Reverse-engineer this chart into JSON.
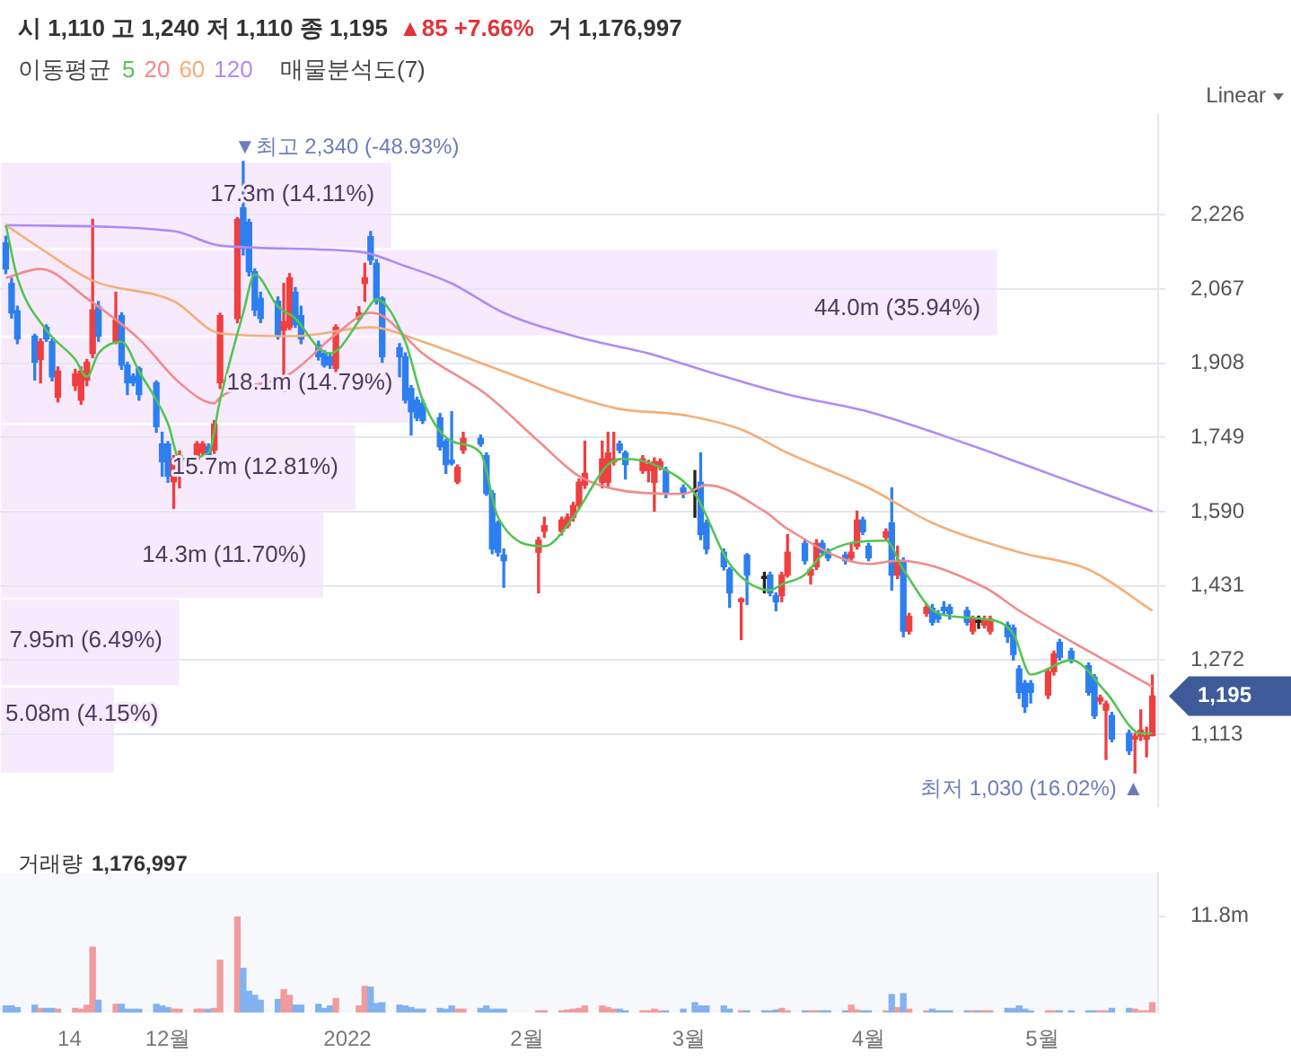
{
  "chart_data": [
    {
      "type": "candlestick",
      "title": "시 1,110 고 1,240 저 1,110 종 1,195",
      "subtitle": "▲85 +7.66%",
      "legend_title": "이동평균",
      "legend": "top left",
      "grid": "y",
      "marker": "none",
      "tick_labels": "y",
      "annotations": [
        "거 1,176,997",
        "Linear",
        {
          "text": "▼최고 2,340 (-48.93%)",
          "x": "2021-12-14",
          "y": 2340
        },
        {
          "text": "최저 1,030 (16.02%) ▲",
          "x": "2022-05-17",
          "y": 1030
        },
        {
          "text": "1,195",
          "x": "2022-05-20",
          "y": 1195
        }
      ],
      "xlim": [
        "2021-11-02",
        "2022-05-21"
      ],
      "ylim": [
        960,
        2440
      ],
      "yticks": [
        {
          "value": 1113,
          "label": "1,113"
        },
        {
          "value": 1272,
          "label": "1,272"
        },
        {
          "value": 1431,
          "label": "1,431"
        },
        {
          "value": 1590,
          "label": "1,590"
        },
        {
          "value": 1749,
          "label": "1,749"
        },
        {
          "value": 1908,
          "label": "1,908"
        },
        {
          "value": 2067,
          "label": "2,067"
        },
        {
          "value": 2226,
          "label": "2,226"
        }
      ],
      "x": [
        "2021-11-03",
        "2021-11-04",
        "2021-11-05",
        "2021-11-08",
        "2021-11-09",
        "2021-11-10",
        "2021-11-11",
        "2021-11-12",
        "2021-11-15",
        "2021-11-16",
        "2021-11-17",
        "2021-11-18",
        "2021-11-19",
        "2021-11-22",
        "2021-11-23",
        "2021-11-24",
        "2021-11-25",
        "2021-11-26",
        "2021-11-29",
        "2021-11-30",
        "2021-12-01",
        "2021-12-02",
        "2021-12-03",
        "2021-12-06",
        "2021-12-07",
        "2021-12-08",
        "2021-12-09",
        "2021-12-10",
        "2021-12-13",
        "2021-12-14",
        "2021-12-15",
        "2021-12-16",
        "2021-12-17",
        "2021-12-20",
        "2021-12-21",
        "2021-12-22",
        "2021-12-23",
        "2021-12-24",
        "2021-12-27",
        "2021-12-28",
        "2021-12-29",
        "2021-12-30",
        "2022-01-03",
        "2022-01-04",
        "2022-01-05",
        "2022-01-06",
        "2022-01-07",
        "2022-01-10",
        "2022-01-11",
        "2022-01-12",
        "2022-01-13",
        "2022-01-14",
        "2022-01-17",
        "2022-01-18",
        "2022-01-19",
        "2022-01-20",
        "2022-01-21",
        "2022-01-24",
        "2022-01-25",
        "2022-01-26",
        "2022-01-27",
        "2022-01-28",
        "2022-02-03",
        "2022-02-04",
        "2022-02-07",
        "2022-02-08",
        "2022-02-09",
        "2022-02-10",
        "2022-02-11",
        "2022-02-14",
        "2022-02-15",
        "2022-02-16",
        "2022-02-17",
        "2022-02-18",
        "2022-02-21",
        "2022-02-22",
        "2022-02-23",
        "2022-02-24",
        "2022-02-25",
        "2022-02-28",
        "2022-03-02",
        "2022-03-03",
        "2022-03-04",
        "2022-03-07",
        "2022-03-08",
        "2022-03-10",
        "2022-03-11",
        "2022-03-14",
        "2022-03-15",
        "2022-03-16",
        "2022-03-17",
        "2022-03-18",
        "2022-03-21",
        "2022-03-22",
        "2022-03-23",
        "2022-03-24",
        "2022-03-25",
        "2022-03-28",
        "2022-03-29",
        "2022-03-30",
        "2022-03-31",
        "2022-04-01",
        "2022-04-04",
        "2022-04-05",
        "2022-04-06",
        "2022-04-07",
        "2022-04-08",
        "2022-04-11",
        "2022-04-12",
        "2022-04-13",
        "2022-04-14",
        "2022-04-15",
        "2022-04-18",
        "2022-04-19",
        "2022-04-20",
        "2022-04-21",
        "2022-04-22",
        "2022-04-25",
        "2022-04-26",
        "2022-04-27",
        "2022-04-28",
        "2022-04-29",
        "2022-05-02",
        "2022-05-03",
        "2022-05-04",
        "2022-05-06",
        "2022-05-09",
        "2022-05-10",
        "2022-05-11",
        "2022-05-12",
        "2022-05-13",
        "2022-05-16",
        "2022-05-17",
        "2022-05-18",
        "2022-05-19",
        "2022-05-20"
      ],
      "ohlc": [
        [
          2166,
          2180,
          2100,
          2110
        ],
        [
          2079,
          2090,
          2005,
          2016
        ],
        [
          2020,
          2030,
          1950,
          1960
        ],
        [
          1966,
          1970,
          1872,
          1910
        ],
        [
          1916,
          1960,
          1866,
          1954
        ],
        [
          1985,
          1990,
          1955,
          1960
        ],
        [
          1954,
          1960,
          1870,
          1879
        ],
        [
          1835,
          1900,
          1825,
          1891
        ],
        [
          1860,
          1895,
          1850,
          1885
        ],
        [
          1829,
          1900,
          1820,
          1891
        ],
        [
          1872,
          1916,
          1860,
          1910
        ],
        [
          1929,
          2216,
          1920,
          2022
        ],
        [
          2029,
          2040,
          1955,
          1966
        ],
        [
          1954,
          2060,
          1950,
          2000
        ],
        [
          2010,
          2016,
          1895,
          1904
        ],
        [
          1904,
          1910,
          1841,
          1866
        ],
        [
          1880,
          1885,
          1860,
          1866
        ],
        [
          1897,
          1900,
          1829,
          1841
        ],
        [
          1866,
          1870,
          1760,
          1772
        ],
        [
          1735,
          1760,
          1666,
          1697
        ],
        [
          1735,
          1740,
          1653,
          1666
        ],
        [
          1654,
          1710,
          1597,
          1703
        ],
        [
          1672,
          1720,
          1641,
          1710
        ],
        [
          1703,
          1740,
          1700,
          1735
        ],
        [
          1716,
          1740,
          1710,
          1735
        ],
        [
          1729,
          1735,
          1705,
          1710
        ],
        [
          1722,
          1785,
          1715,
          1778
        ],
        [
          1866,
          2015,
          1854,
          2010
        ],
        [
          2004,
          2220,
          1995,
          2216
        ],
        [
          2241,
          2340,
          2140,
          2154
        ],
        [
          2210,
          2216,
          2095,
          2104
        ],
        [
          2104,
          2110,
          2010,
          2022
        ],
        [
          2047,
          2060,
          1995,
          2004
        ],
        [
          2041,
          2050,
          1960,
          1966
        ],
        [
          1979,
          2079,
          1847,
          1997
        ],
        [
          1985,
          2100,
          1980,
          2091
        ],
        [
          2060,
          2070,
          1985,
          1991
        ],
        [
          2010,
          2030,
          1950,
          1960
        ],
        [
          1947,
          1955,
          1915,
          1922
        ],
        [
          1929,
          1935,
          1900,
          1904
        ],
        [
          1922,
          1930,
          1897,
          1904
        ],
        [
          1897,
          1990,
          1890,
          1985
        ],
        [
          2004,
          2029,
          2000,
          2016
        ],
        [
          2079,
          2122,
          2041,
          2091
        ],
        [
          2179,
          2190,
          2120,
          2129
        ],
        [
          2122,
          2130,
          2035,
          2041
        ],
        [
          2047,
          2050,
          1910,
          1922
        ],
        [
          1941,
          1950,
          1879,
          1922
        ],
        [
          1922,
          1930,
          1823,
          1829
        ],
        [
          1854,
          1860,
          1754,
          1804
        ],
        [
          1829,
          1835,
          1785,
          1791
        ],
        [
          1822,
          1830,
          1779,
          1785
        ],
        [
          1791,
          1800,
          1722,
          1729
        ],
        [
          1741,
          1745,
          1672,
          1691
        ],
        [
          1700,
          1804,
          1690,
          1694
        ],
        [
          1654,
          1690,
          1650,
          1685
        ],
        [
          1722,
          1760,
          1715,
          1747
        ],
        [
          1747,
          1754,
          1730,
          1735
        ],
        [
          1710,
          1716,
          1625,
          1629
        ],
        [
          1629,
          1635,
          1500,
          1510
        ],
        [
          1566,
          1570,
          1495,
          1503
        ],
        [
          1497,
          1510,
          1428,
          1485
        ],
        [
          1503,
          1535,
          1416,
          1529
        ],
        [
          1548,
          1578,
          1535,
          1560
        ],
        [
          1548,
          1578,
          1540,
          1572
        ],
        [
          1560,
          1585,
          1555,
          1578
        ],
        [
          1578,
          1610,
          1570,
          1603
        ],
        [
          1603,
          1660,
          1597,
          1653
        ],
        [
          1647,
          1741,
          1640,
          1672
        ],
        [
          1653,
          1741,
          1641,
          1703
        ],
        [
          1653,
          1760,
          1641,
          1716
        ],
        [
          1697,
          1760,
          1690,
          1703
        ],
        [
          1735,
          1741,
          1716,
          1722
        ],
        [
          1716,
          1720,
          1660,
          1691
        ],
        [
          1678,
          1710,
          1672,
          1703
        ],
        [
          1678,
          1700,
          1654,
          1691
        ],
        [
          1653,
          1705,
          1591,
          1697
        ],
        [
          1685,
          1703,
          1680,
          1697
        ],
        [
          1678,
          1685,
          1620,
          1629
        ],
        [
          1641,
          1647,
          1620,
          1629
        ],
        [
          1634,
          1678,
          1578,
          1634
        ],
        [
          1653,
          1716,
          1530,
          1541
        ],
        [
          1566,
          1572,
          1500,
          1510
        ],
        [
          1503,
          1510,
          1465,
          1472
        ],
        [
          1466,
          1470,
          1385,
          1416
        ],
        [
          1397,
          1405,
          1316,
          1403
        ],
        [
          1497,
          1500,
          1391,
          1454
        ],
        [
          1447,
          1460,
          1416,
          1447
        ],
        [
          1454,
          1460,
          1410,
          1416
        ],
        [
          1410,
          1416,
          1378,
          1397
        ],
        [
          1410,
          1460,
          1397,
          1454
        ],
        [
          1454,
          1541,
          1450,
          1503
        ],
        [
          1522,
          1530,
          1478,
          1485
        ],
        [
          1454,
          1470,
          1435,
          1466
        ],
        [
          1472,
          1530,
          1466,
          1522
        ],
        [
          1522,
          1528,
          1497,
          1503
        ],
        [
          1503,
          1510,
          1485,
          1491
        ],
        [
          1497,
          1503,
          1478,
          1485
        ],
        [
          1491,
          1522,
          1485,
          1503
        ],
        [
          1516,
          1591,
          1510,
          1572
        ],
        [
          1572,
          1578,
          1541,
          1547
        ],
        [
          1516,
          1522,
          1485,
          1491
        ],
        [
          1535,
          1553,
          1528,
          1547
        ],
        [
          1566,
          1641,
          1422,
          1454
        ],
        [
          1454,
          1516,
          1447,
          1485
        ],
        [
          1485,
          1491,
          1322,
          1334
        ],
        [
          1334,
          1372,
          1328,
          1366
        ],
        [
          1372,
          1391,
          1366,
          1385
        ],
        [
          1383,
          1391,
          1347,
          1353
        ],
        [
          1372,
          1378,
          1353,
          1360
        ],
        [
          1385,
          1397,
          1372,
          1378
        ],
        [
          1385,
          1391,
          1360,
          1372
        ],
        [
          1378,
          1385,
          1347,
          1353
        ],
        [
          1334,
          1366,
          1328,
          1360
        ],
        [
          1353,
          1366,
          1340,
          1353
        ],
        [
          1347,
          1366,
          1341,
          1360
        ],
        [
          1334,
          1366,
          1328,
          1360
        ],
        [
          1347,
          1353,
          1310,
          1322
        ],
        [
          1341,
          1347,
          1272,
          1284
        ],
        [
          1253,
          1260,
          1190,
          1203
        ],
        [
          1222,
          1228,
          1160,
          1172
        ],
        [
          1222,
          1228,
          1180,
          1203
        ],
        [
          1197,
          1253,
          1190,
          1247
        ],
        [
          1247,
          1291,
          1240,
          1285
        ],
        [
          1310,
          1316,
          1272,
          1278
        ],
        [
          1291,
          1297,
          1266,
          1272
        ],
        [
          1260,
          1266,
          1197,
          1203
        ],
        [
          1235,
          1241,
          1147,
          1153
        ],
        [
          1184,
          1197,
          1178,
          1191
        ],
        [
          1165,
          1184,
          1059,
          1178
        ],
        [
          1153,
          1160,
          1097,
          1103
        ],
        [
          1115,
          1122,
          1070,
          1078
        ],
        [
          1103,
          1115,
          1030,
          1109
        ],
        [
          1109,
          1165,
          1100,
          1122
        ],
        [
          1103,
          1128,
          1065,
          1110
        ],
        [
          1110,
          1240,
          1110,
          1195
        ]
      ],
      "colors": [
        "#2d7ff0",
        "#2d7ff0",
        "#2d7ff0",
        "#2d7ff0",
        "#ef3f3f",
        "#2d7ff0",
        "#2d7ff0",
        "#ef3f3f",
        "#ef3f3f",
        "#ef3f3f",
        "#ef3f3f",
        "#ef3f3f",
        "#2d7ff0",
        "#ef3f3f",
        "#2d7ff0",
        "#2d7ff0",
        "#2d7ff0",
        "#2d7ff0",
        "#2d7ff0",
        "#2d7ff0",
        "#2d7ff0",
        "#ef3f3f",
        "#ef3f3f",
        "#ef3f3f",
        "#ef3f3f",
        "#2d7ff0",
        "#ef3f3f",
        "#ef3f3f",
        "#ef3f3f",
        "#2d7ff0",
        "#2d7ff0",
        "#2d7ff0",
        "#2d7ff0",
        "#2d7ff0",
        "#ef3f3f",
        "#ef3f3f",
        "#2d7ff0",
        "#2d7ff0",
        "#2d7ff0",
        "#2d7ff0",
        "#2d7ff0",
        "#ef3f3f",
        "#ef3f3f",
        "#ef3f3f",
        "#2d7ff0",
        "#2d7ff0",
        "#2d7ff0",
        "#2d7ff0",
        "#2d7ff0",
        "#2d7ff0",
        "#2d7ff0",
        "#2d7ff0",
        "#2d7ff0",
        "#2d7ff0",
        "#2d7ff0",
        "#ef3f3f",
        "#ef3f3f",
        "#2d7ff0",
        "#2d7ff0",
        "#2d7ff0",
        "#2d7ff0",
        "#2d7ff0",
        "#ef3f3f",
        "#ef3f3f",
        "#ef3f3f",
        "#ef3f3f",
        "#ef3f3f",
        "#ef3f3f",
        "#ef3f3f",
        "#ef3f3f",
        "#ef3f3f",
        "#ef3f3f",
        "#2d7ff0",
        "#2d7ff0",
        "#ef3f3f",
        "#ef3f3f",
        "#ef3f3f",
        "#ef3f3f",
        "#2d7ff0",
        "#2d7ff0",
        "#222222",
        "#2d7ff0",
        "#2d7ff0",
        "#2d7ff0",
        "#2d7ff0",
        "#ef3f3f",
        "#2d7ff0",
        "#222222",
        "#2d7ff0",
        "#2d7ff0",
        "#ef3f3f",
        "#ef3f3f",
        "#2d7ff0",
        "#ef3f3f",
        "#ef3f3f",
        "#2d7ff0",
        "#2d7ff0",
        "#2d7ff0",
        "#ef3f3f",
        "#ef3f3f",
        "#2d7ff0",
        "#2d7ff0",
        "#ef3f3f",
        "#2d7ff0",
        "#ef3f3f",
        "#2d7ff0",
        "#ef3f3f",
        "#ef3f3f",
        "#2d7ff0",
        "#2d7ff0",
        "#2d7ff0",
        "#2d7ff0",
        "#2d7ff0",
        "#ef3f3f",
        "#222222",
        "#ef3f3f",
        "#ef3f3f",
        "#2d7ff0",
        "#2d7ff0",
        "#2d7ff0",
        "#2d7ff0",
        "#2d7ff0",
        "#ef3f3f",
        "#ef3f3f",
        "#2d7ff0",
        "#2d7ff0",
        "#2d7ff0",
        "#2d7ff0",
        "#ef3f3f",
        "#ef3f3f",
        "#2d7ff0",
        "#2d7ff0",
        "#ef3f3f",
        "#ef3f3f",
        "#ef3f3f",
        "#ef3f3f"
      ],
      "series": [
        {
          "name": "5",
          "type": "line",
          "color": "#52c452",
          "x": [
            "2021-11-03",
            "2021-11-05",
            "2021-11-10",
            "2021-11-15",
            "2021-11-17",
            "2021-11-19",
            "2021-11-23",
            "2021-11-26",
            "2021-12-01",
            "2021-12-03",
            "2021-12-08",
            "2021-12-10",
            "2021-12-14",
            "2021-12-16",
            "2021-12-20",
            "2021-12-23",
            "2021-12-27",
            "2021-12-29",
            "2022-01-04",
            "2022-01-06",
            "2022-01-11",
            "2022-01-14",
            "2022-01-19",
            "2022-01-24",
            "2022-01-27",
            "2022-02-04",
            "2022-02-09",
            "2022-02-15",
            "2022-02-18",
            "2022-02-24",
            "2022-03-02",
            "2022-03-08",
            "2022-03-15",
            "2022-03-17",
            "2022-03-21",
            "2022-03-24",
            "2022-04-04",
            "2022-04-07",
            "2022-04-13",
            "2022-04-21",
            "2022-04-26",
            "2022-04-29",
            "2022-05-06",
            "2022-05-12",
            "2022-05-18",
            "2022-05-20"
          ],
          "values": [
            2204,
            2091,
            1979,
            1916,
            1879,
            1929,
            1954,
            1891,
            1779,
            1703,
            1716,
            1829,
            2016,
            2098,
            2029,
            2004,
            1941,
            1929,
            2016,
            2045,
            1954,
            1829,
            1741,
            1716,
            1578,
            1516,
            1578,
            1691,
            1703,
            1685,
            1628,
            1478,
            1422,
            1434,
            1455,
            1497,
            1528,
            1466,
            1372,
            1360,
            1328,
            1241,
            1272,
            1203,
            1115,
            1115
          ]
        },
        {
          "name": "20",
          "type": "line",
          "color": "#f28b8b",
          "x": [
            "2021-11-03",
            "2021-11-09",
            "2021-11-17",
            "2021-11-26",
            "2021-12-03",
            "2021-12-09",
            "2021-12-10",
            "2021-12-22",
            "2021-12-30",
            "2022-01-05",
            "2022-01-07",
            "2022-01-14",
            "2022-01-25",
            "2022-02-03",
            "2022-02-10",
            "2022-02-18",
            "2022-02-28",
            "2022-03-04",
            "2022-03-14",
            "2022-03-18",
            "2022-04-01",
            "2022-04-06",
            "2022-04-21",
            "2022-04-27",
            "2022-05-09",
            "2022-05-20"
          ],
          "values": [
            2091,
            2110,
            2047,
            1960,
            1866,
            1822,
            1835,
            1885,
            1970,
            2016,
            2010,
            1929,
            1841,
            1741,
            1666,
            1634,
            1628,
            1647,
            1591,
            1553,
            1478,
            1485,
            1428,
            1378,
            1291,
            1215
          ]
        },
        {
          "name": "60",
          "type": "line",
          "color": "#f5ae78",
          "x": [
            "2021-11-03",
            "2021-11-09",
            "2021-11-18",
            "2021-12-02",
            "2021-12-10",
            "2021-12-23",
            "2022-01-05",
            "2022-01-14",
            "2022-01-25",
            "2022-02-08",
            "2022-02-17",
            "2022-02-28",
            "2022-03-10",
            "2022-03-18",
            "2022-04-01",
            "2022-04-12",
            "2022-04-27",
            "2022-05-09",
            "2022-05-20"
          ],
          "values": [
            2204,
            2154,
            2085,
            2041,
            1972,
            1966,
            1985,
            1954,
            1904,
            1841,
            1810,
            1797,
            1766,
            1716,
            1641,
            1566,
            1503,
            1466,
            1378
          ]
        },
        {
          "name": "120",
          "type": "line",
          "color": "#b08af5",
          "x": [
            "2021-11-03",
            "2021-12-02",
            "2021-12-10",
            "2022-01-03",
            "2022-01-11",
            "2022-01-19",
            "2022-01-28",
            "2022-02-11",
            "2022-02-22",
            "2022-03-04",
            "2022-03-18",
            "2022-04-01",
            "2022-04-18",
            "2022-05-02",
            "2022-05-20"
          ],
          "values": [
            2204,
            2191,
            2160,
            2147,
            2116,
            2079,
            2016,
            1960,
            1929,
            1891,
            1841,
            1804,
            1735,
            1672,
            1591
          ]
        }
      ]
    },
    {
      "type": "bar",
      "orientation": "horizontal",
      "title": "매물분석도(7)",
      "color": "#f7eafd",
      "categories": [
        null,
        null,
        null,
        null,
        null,
        null,
        null
      ],
      "values": [
        17300000,
        44000000,
        18100000,
        15700000,
        14300000,
        7950000,
        5080000
      ],
      "value_labels": [
        "17.3m (14.11%)",
        "44.0m (35.94%)",
        "18.1m (14.79%)",
        "15.7m (12.81%)",
        "14.3m (11.70%)",
        "7.95m (6.49%)",
        "5.08m (4.15%)"
      ]
    },
    {
      "type": "bar",
      "title": "거래량",
      "subtitle": "1,176,997",
      "xlim": [
        "2021-11-02",
        "2022-05-21"
      ],
      "xticks": [
        {
          "value": "2021-11-14",
          "label": "14"
        },
        {
          "value": "2021-12-01",
          "label": "12월"
        },
        {
          "value": "2022-01-01",
          "label": "2022"
        },
        {
          "value": "2022-02-01",
          "label": "2월"
        },
        {
          "value": "2022-03-01",
          "label": "3월"
        },
        {
          "value": "2022-04-01",
          "label": "4월"
        },
        {
          "value": "2022-05-01",
          "label": "5월"
        }
      ],
      "ylim": [
        0,
        17.1
      ],
      "yticks": [
        {
          "value": 11.8,
          "label": "11.8m"
        }
      ],
      "x": [
        "2021-11-03",
        "2021-11-04",
        "2021-11-05",
        "2021-11-08",
        "2021-11-09",
        "2021-11-10",
        "2021-11-11",
        "2021-11-12",
        "2021-11-15",
        "2021-11-16",
        "2021-11-17",
        "2021-11-18",
        "2021-11-19",
        "2021-11-22",
        "2021-11-23",
        "2021-11-24",
        "2021-11-25",
        "2021-11-26",
        "2021-11-29",
        "2021-11-30",
        "2021-12-01",
        "2021-12-02",
        "2021-12-03",
        "2021-12-06",
        "2021-12-07",
        "2021-12-08",
        "2021-12-09",
        "2021-12-10",
        "2021-12-13",
        "2021-12-14",
        "2021-12-15",
        "2021-12-16",
        "2021-12-17",
        "2021-12-20",
        "2021-12-21",
        "2021-12-22",
        "2021-12-23",
        "2021-12-24",
        "2021-12-27",
        "2021-12-28",
        "2021-12-29",
        "2021-12-30",
        "2022-01-03",
        "2022-01-04",
        "2022-01-05",
        "2022-01-06",
        "2022-01-07",
        "2022-01-10",
        "2022-01-11",
        "2022-01-12",
        "2022-01-13",
        "2022-01-14",
        "2022-01-17",
        "2022-01-18",
        "2022-01-19",
        "2022-01-20",
        "2022-01-21",
        "2022-01-24",
        "2022-01-25",
        "2022-01-26",
        "2022-01-27",
        "2022-01-28",
        "2022-02-03",
        "2022-02-04",
        "2022-02-07",
        "2022-02-08",
        "2022-02-09",
        "2022-02-10",
        "2022-02-11",
        "2022-02-14",
        "2022-02-15",
        "2022-02-16",
        "2022-02-17",
        "2022-02-18",
        "2022-02-21",
        "2022-02-22",
        "2022-02-23",
        "2022-02-24",
        "2022-02-25",
        "2022-02-28",
        "2022-03-02",
        "2022-03-03",
        "2022-03-04",
        "2022-03-07",
        "2022-03-08",
        "2022-03-10",
        "2022-03-11",
        "2022-03-14",
        "2022-03-15",
        "2022-03-16",
        "2022-03-17",
        "2022-03-18",
        "2022-03-21",
        "2022-03-22",
        "2022-03-23",
        "2022-03-24",
        "2022-03-25",
        "2022-03-28",
        "2022-03-29",
        "2022-03-30",
        "2022-03-31",
        "2022-04-01",
        "2022-04-04",
        "2022-04-05",
        "2022-04-06",
        "2022-04-07",
        "2022-04-08",
        "2022-04-11",
        "2022-04-12",
        "2022-04-13",
        "2022-04-14",
        "2022-04-15",
        "2022-04-18",
        "2022-04-19",
        "2022-04-20",
        "2022-04-21",
        "2022-04-22",
        "2022-04-25",
        "2022-04-26",
        "2022-04-27",
        "2022-04-28",
        "2022-04-29",
        "2022-05-02",
        "2022-05-03",
        "2022-05-04",
        "2022-05-06",
        "2022-05-09",
        "2022-05-10",
        "2022-05-11",
        "2022-05-12",
        "2022-05-13",
        "2022-05-16",
        "2022-05-17",
        "2022-05-18",
        "2022-05-19",
        "2022-05-20"
      ],
      "values": [
        0.8,
        0.8,
        0.6,
        0.9,
        0.5,
        0.5,
        0.5,
        0.4,
        0.5,
        0.4,
        0.9,
        8.0,
        1.5,
        1.0,
        1.0,
        0.4,
        0.4,
        0.4,
        1.0,
        0.8,
        0.6,
        0.4,
        0.4,
        0.4,
        0.4,
        0.4,
        0.5,
        6.4,
        11.7,
        5.4,
        2.6,
        2.1,
        1.5,
        1.6,
        2.8,
        2.1,
        0.9,
        0.9,
        1.0,
        0.5,
        0.8,
        1.7,
        0.8,
        3.2,
        3.1,
        1.1,
        1.2,
        0.9,
        0.8,
        0.6,
        0.4,
        0.4,
        0.5,
        0.4,
        0.8,
        0.4,
        0.4,
        0.5,
        0.8,
        0.4,
        0.4,
        0.4,
        0.2,
        0.2,
        0.2,
        0.3,
        0.4,
        0.5,
        0.8,
        0.8,
        0.6,
        0.4,
        0.4,
        0.2,
        0.2,
        0.2,
        0.4,
        0.2,
        0.2,
        0.4,
        1.2,
        0.8,
        0.8,
        0.8,
        0.4,
        0.2,
        0.2,
        0.2,
        0.2,
        0.3,
        0.5,
        0.2,
        0.2,
        0.2,
        0.2,
        0.2,
        0.2,
        0.2,
        0.9,
        0.3,
        0.2,
        0.2,
        0.2,
        2.2,
        0.6,
        2.3,
        0.4,
        0.2,
        0.4,
        0.2,
        0.2,
        0.2,
        0.2,
        0.2,
        0.2,
        0.2,
        0.2,
        0.5,
        0.5,
        0.8,
        0.4,
        0.2,
        0.2,
        0.2,
        0.2,
        0.2,
        0.2,
        0.2,
        0.2,
        0.2,
        0.5,
        0.5,
        0.4,
        0.2,
        0.2,
        1.2
      ],
      "colors": [
        "#82b2f0",
        "#82b2f0",
        "#82b2f0",
        "#82b2f0",
        "#f19c9c",
        "#82b2f0",
        "#82b2f0",
        "#f19c9c",
        "#f19c9c",
        "#f19c9c",
        "#f19c9c",
        "#f19c9c",
        "#82b2f0",
        "#f19c9c",
        "#82b2f0",
        "#82b2f0",
        "#82b2f0",
        "#82b2f0",
        "#82b2f0",
        "#82b2f0",
        "#82b2f0",
        "#f19c9c",
        "#f19c9c",
        "#f19c9c",
        "#f19c9c",
        "#82b2f0",
        "#f19c9c",
        "#f19c9c",
        "#f19c9c",
        "#82b2f0",
        "#82b2f0",
        "#82b2f0",
        "#82b2f0",
        "#82b2f0",
        "#f19c9c",
        "#f19c9c",
        "#82b2f0",
        "#82b2f0",
        "#82b2f0",
        "#82b2f0",
        "#82b2f0",
        "#f19c9c",
        "#f19c9c",
        "#f19c9c",
        "#82b2f0",
        "#82b2f0",
        "#82b2f0",
        "#82b2f0",
        "#82b2f0",
        "#82b2f0",
        "#82b2f0",
        "#82b2f0",
        "#82b2f0",
        "#82b2f0",
        "#82b2f0",
        "#f19c9c",
        "#f19c9c",
        "#82b2f0",
        "#82b2f0",
        "#82b2f0",
        "#82b2f0",
        "#82b2f0",
        "#f19c9c",
        "#f19c9c",
        "#f19c9c",
        "#f19c9c",
        "#f19c9c",
        "#f19c9c",
        "#f19c9c",
        "#f19c9c",
        "#f19c9c",
        "#f19c9c",
        "#82b2f0",
        "#82b2f0",
        "#f19c9c",
        "#f19c9c",
        "#f19c9c",
        "#f19c9c",
        "#82b2f0",
        "#82b2f0",
        "#82b2f0",
        "#82b2f0",
        "#82b2f0",
        "#82b2f0",
        "#82b2f0",
        "#f19c9c",
        "#82b2f0",
        "#82b2f0",
        "#82b2f0",
        "#82b2f0",
        "#f19c9c",
        "#f19c9c",
        "#82b2f0",
        "#f19c9c",
        "#f19c9c",
        "#82b2f0",
        "#82b2f0",
        "#82b2f0",
        "#f19c9c",
        "#f19c9c",
        "#82b2f0",
        "#82b2f0",
        "#f19c9c",
        "#82b2f0",
        "#f19c9c",
        "#82b2f0",
        "#f19c9c",
        "#f19c9c",
        "#82b2f0",
        "#82b2f0",
        "#82b2f0",
        "#82b2f0",
        "#82b2f0",
        "#f19c9c",
        "#82b2f0",
        "#f19c9c",
        "#f19c9c",
        "#82b2f0",
        "#82b2f0",
        "#82b2f0",
        "#82b2f0",
        "#82b2f0",
        "#f19c9c",
        "#f19c9c",
        "#82b2f0",
        "#82b2f0",
        "#82b2f0",
        "#82b2f0",
        "#f19c9c",
        "#f19c9c",
        "#82b2f0",
        "#82b2f0",
        "#f19c9c",
        "#f19c9c",
        "#f19c9c",
        "#f19c9c"
      ]
    }
  ]
}
